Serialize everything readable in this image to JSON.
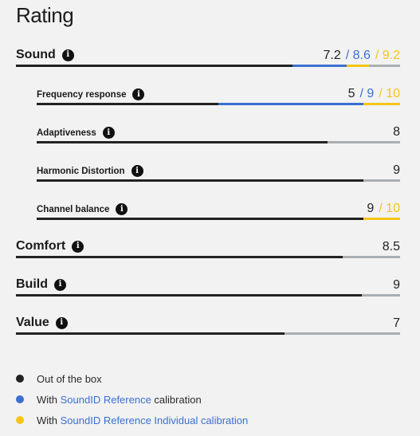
{
  "title": "Rating",
  "scale_max": 10,
  "colors": {
    "out_of_box": "#222222",
    "reference": "#3b6fd1",
    "individual": "#f5c518",
    "track": "#a9aeb3"
  },
  "ratings": [
    {
      "label": "Sound",
      "level": "main",
      "out_of_box": 7.2,
      "reference": 8.6,
      "individual": 9.2,
      "scores": {
        "out_of_box": "7.2",
        "reference": "/ 8.6",
        "individual": "/ 9.2"
      }
    },
    {
      "label": "Frequency response",
      "level": "sub",
      "out_of_box": 5,
      "reference": 9,
      "individual": 10,
      "scores": {
        "out_of_box": "5",
        "reference": "/ 9",
        "individual": "/ 10"
      }
    },
    {
      "label": "Adaptiveness",
      "level": "sub",
      "out_of_box": 8,
      "scores": {
        "out_of_box": "8"
      }
    },
    {
      "label": "Harmonic Distortion",
      "level": "sub",
      "out_of_box": 9,
      "scores": {
        "out_of_box": "9"
      }
    },
    {
      "label": "Channel balance",
      "level": "sub",
      "out_of_box": 9,
      "individual": 10,
      "scores": {
        "out_of_box": "9",
        "individual": "/ 10"
      }
    },
    {
      "label": "Comfort",
      "level": "main",
      "out_of_box": 8.5,
      "scores": {
        "out_of_box": "8.5"
      }
    },
    {
      "label": "Build",
      "level": "main",
      "out_of_box": 9,
      "scores": {
        "out_of_box": "9"
      }
    },
    {
      "label": "Value",
      "level": "main",
      "out_of_box": 7,
      "scores": {
        "out_of_box": "7"
      }
    }
  ],
  "legend": {
    "out_of_box": {
      "text": "Out of the box"
    },
    "reference": {
      "prefix": "With ",
      "link": "SoundID Reference",
      "suffix": " calibration"
    },
    "individual": {
      "prefix": "With ",
      "link": "SoundID Reference Individual calibration"
    }
  }
}
